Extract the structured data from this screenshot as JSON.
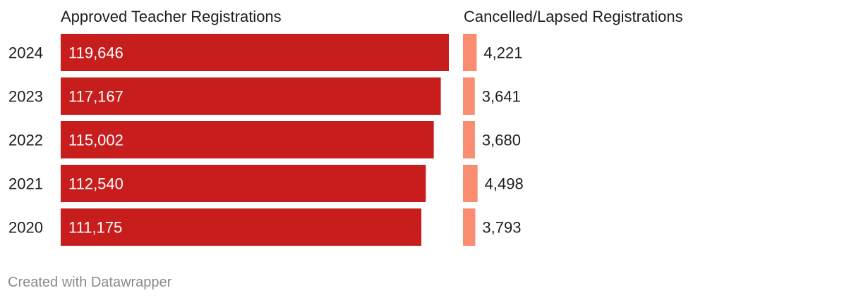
{
  "chart_data": {
    "type": "bar",
    "orientation": "horizontal",
    "categories": [
      "2024",
      "2023",
      "2022",
      "2021",
      "2020"
    ],
    "series": [
      {
        "name": "Approved Teacher Registrations",
        "values": [
          119646,
          117167,
          115002,
          112540,
          111175
        ],
        "labels": [
          "119,646",
          "117,167",
          "115,002",
          "112,540",
          "111,175"
        ],
        "color": "#c71e1d"
      },
      {
        "name": "Cancelled/Lapsed Registrations",
        "values": [
          4221,
          3641,
          3680,
          4498,
          3793
        ],
        "labels": [
          "4,221",
          "3,641",
          "3,680",
          "4,498",
          "3,793"
        ],
        "color": "#fa8c6f"
      }
    ]
  },
  "footer": {
    "credit": "Created with Datawrapper"
  }
}
